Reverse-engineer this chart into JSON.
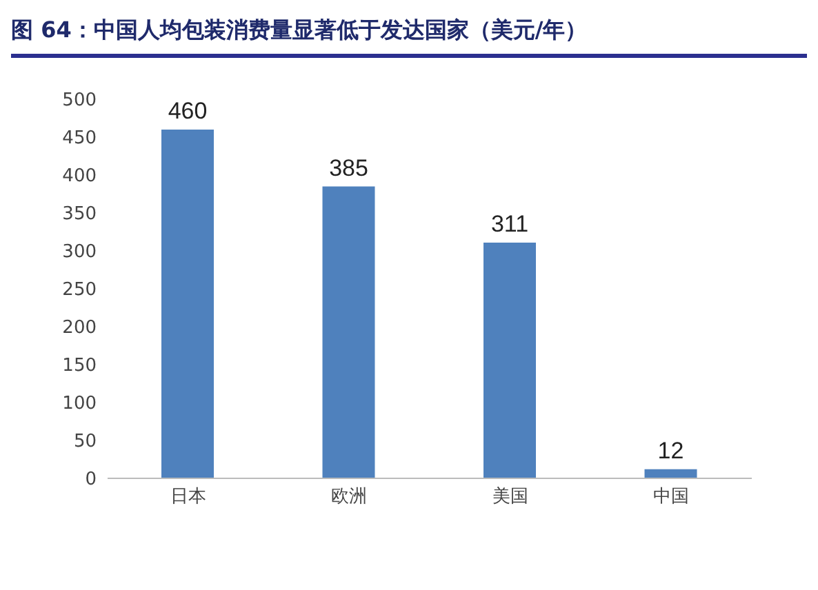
{
  "chart_data": {
    "type": "bar",
    "title": "图 64：中国人均包装消费量显著低于发达国家（美元/年）",
    "categories": [
      "日本",
      "欧洲",
      "美国",
      "中国"
    ],
    "values": [
      460,
      385,
      311,
      12
    ],
    "color": "#4f81bd",
    "ylim": [
      0,
      500
    ],
    "yticks": [
      0,
      50,
      100,
      150,
      200,
      250,
      300,
      350,
      400,
      450,
      500
    ],
    "grid": false,
    "data_labels": true
  }
}
